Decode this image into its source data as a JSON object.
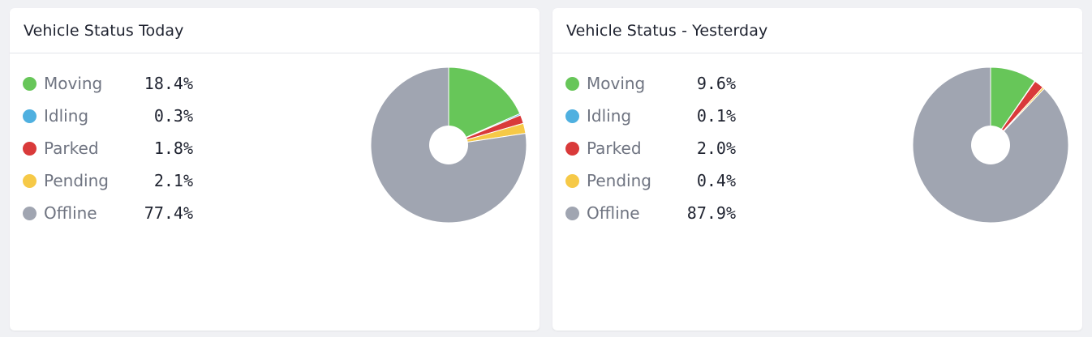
{
  "colors": {
    "Moving": "#67c659",
    "Idling": "#4fb0e0",
    "Parked": "#d93a3a",
    "Pending": "#f6c947",
    "Offline": "#a0a5b1"
  },
  "chart_data": [
    {
      "type": "pie",
      "title": "Vehicle Status Today",
      "donut": true,
      "categories": [
        "Moving",
        "Idling",
        "Parked",
        "Pending",
        "Offline"
      ],
      "values": [
        18.4,
        0.3,
        1.8,
        2.1,
        77.4
      ],
      "value_labels": [
        "18.4%",
        "0.3%",
        "1.8%",
        "2.1%",
        "77.4%"
      ],
      "legend": "left"
    },
    {
      "type": "pie",
      "title": "Vehicle Status - Yesterday",
      "donut": true,
      "categories": [
        "Moving",
        "Idling",
        "Parked",
        "Pending",
        "Offline"
      ],
      "values": [
        9.6,
        0.1,
        2.0,
        0.4,
        87.9
      ],
      "value_labels": [
        "9.6%",
        "0.1%",
        "2.0%",
        "0.4%",
        "87.9%"
      ],
      "legend": "left"
    }
  ]
}
